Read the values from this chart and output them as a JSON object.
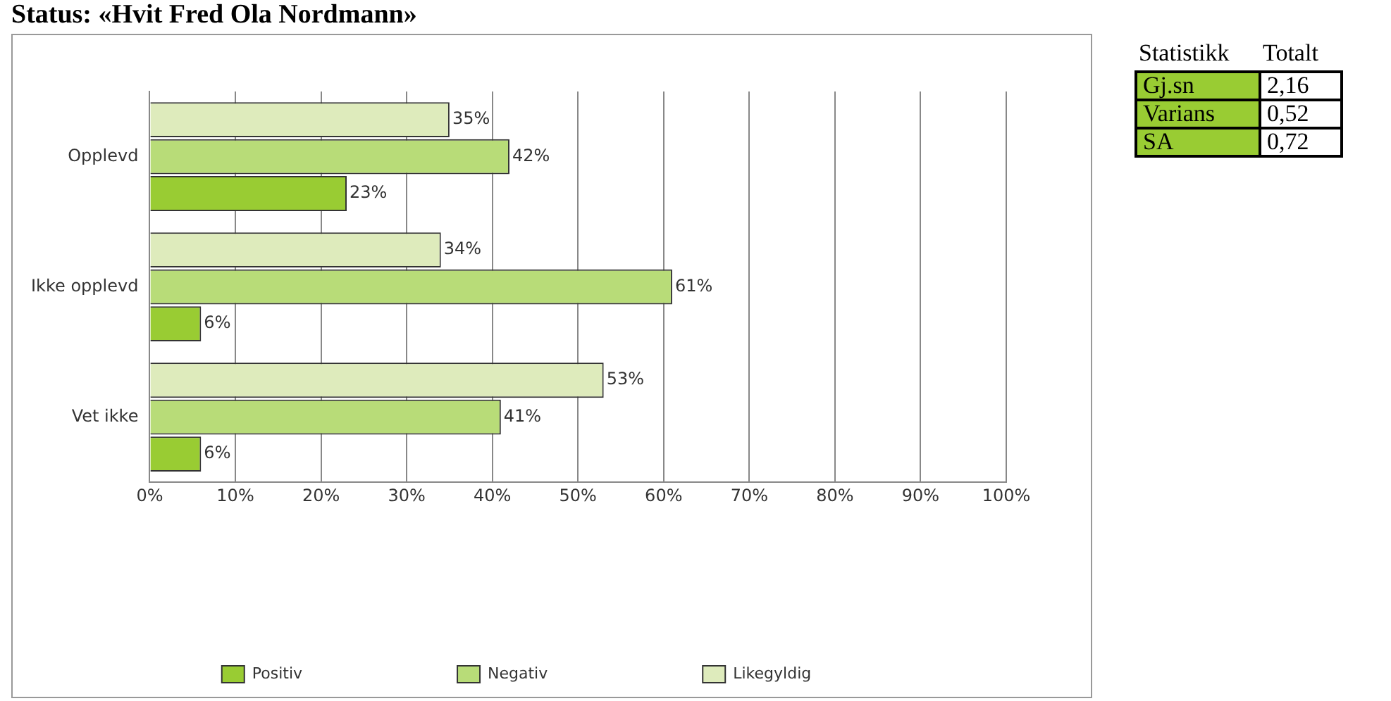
{
  "chart_data": {
    "type": "bar",
    "orientation": "horizontal",
    "title": "Status: «Hvit Fred Ola Nordmann»",
    "categories": [
      "Opplevd",
      "Ikke opplevd",
      "Vet ikke"
    ],
    "series": [
      {
        "name": "Likegyldig",
        "color": "#deebbc",
        "values": [
          35,
          34,
          53
        ],
        "value_labels": [
          "35%",
          "34%",
          "53%"
        ]
      },
      {
        "name": "Negativ",
        "color": "#b8dc78",
        "values": [
          42,
          61,
          41
        ],
        "value_labels": [
          "42%",
          "61%",
          "41%"
        ]
      },
      {
        "name": "Positiv",
        "color": "#99cc33",
        "values": [
          23,
          6,
          6
        ],
        "value_labels": [
          "23%",
          "6%",
          "6%"
        ]
      }
    ],
    "xlim": [
      0,
      100
    ],
    "xticks": [
      {
        "value": 0,
        "label": "0%"
      },
      {
        "value": 10,
        "label": "10%"
      },
      {
        "value": 20,
        "label": "20%"
      },
      {
        "value": 30,
        "label": "30%"
      },
      {
        "value": 40,
        "label": "40%"
      },
      {
        "value": 50,
        "label": "50%"
      },
      {
        "value": 60,
        "label": "60%"
      },
      {
        "value": 70,
        "label": "70%"
      },
      {
        "value": 80,
        "label": "80%"
      },
      {
        "value": 90,
        "label": "90%"
      },
      {
        "value": 100,
        "label": "100%"
      }
    ],
    "grid": "x",
    "legend": "bottom",
    "annotations": [
      "Statistikk",
      "Totalt",
      "Gj.sn",
      "2,16",
      "Varians",
      "0,52",
      "SA",
      "0,72"
    ]
  }
}
